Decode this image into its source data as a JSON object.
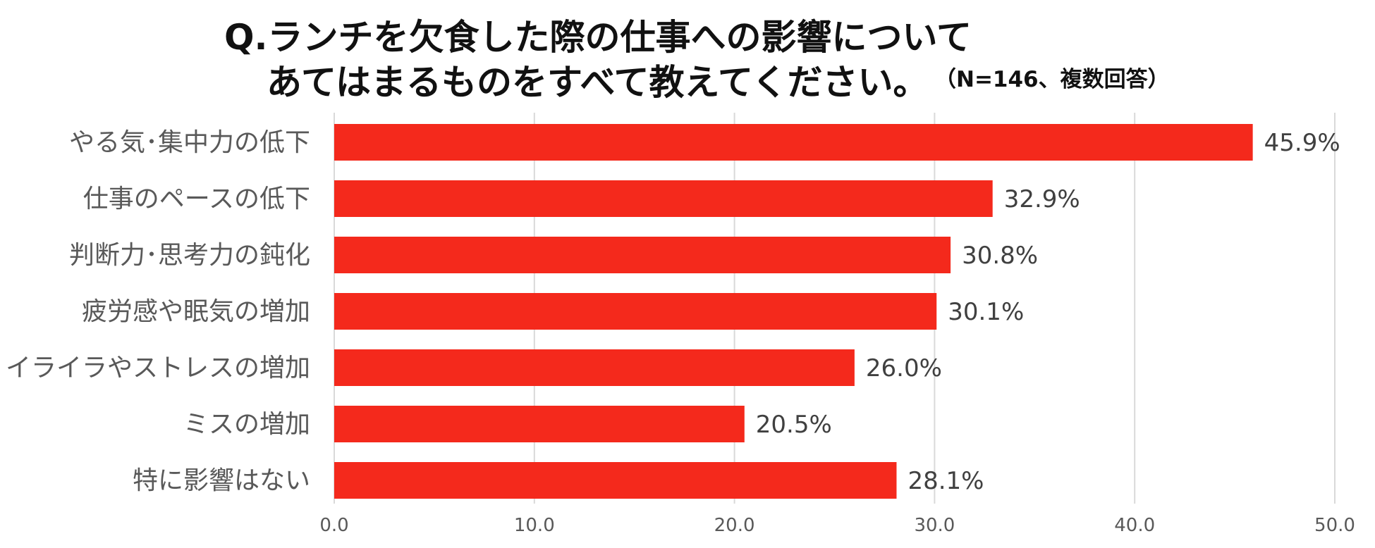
{
  "title": {
    "line1": "Q.ランチを欠食した際の仕事への影響について",
    "line2": "あてはまるものをすべて教えてください。",
    "note": "（N=146、複数回答）"
  },
  "colors": {
    "bar": "#f4291c",
    "grid": "#d9d9d9",
    "category_text": "#595959",
    "value_text": "#404040",
    "axis_text": "#595959"
  },
  "chart_data": {
    "type": "bar",
    "orientation": "horizontal",
    "title": "Q.ランチを欠食した際の仕事への影響について あてはまるものをすべて教えてください。（N=146、複数回答）",
    "categories": [
      "やる気･集中力の低下",
      "仕事のペースの低下",
      "判断力･思考力の鈍化",
      "疲労感や眠気の増加",
      "イライラやストレスの増加",
      "ミスの増加",
      "特に影響はない"
    ],
    "values": [
      45.9,
      32.9,
      30.8,
      30.1,
      26.0,
      20.5,
      28.1
    ],
    "value_labels": [
      "45.9%",
      "32.9%",
      "30.8%",
      "30.1%",
      "26.0%",
      "20.5%",
      "28.1%"
    ],
    "xlim": [
      0,
      50
    ],
    "xticks": [
      "0.0",
      "10.0",
      "20.0",
      "30.0",
      "40.0",
      "50.0"
    ],
    "xtick_values": [
      0,
      10,
      20,
      30,
      40,
      50
    ],
    "grid": "vertical",
    "legend": "none"
  }
}
